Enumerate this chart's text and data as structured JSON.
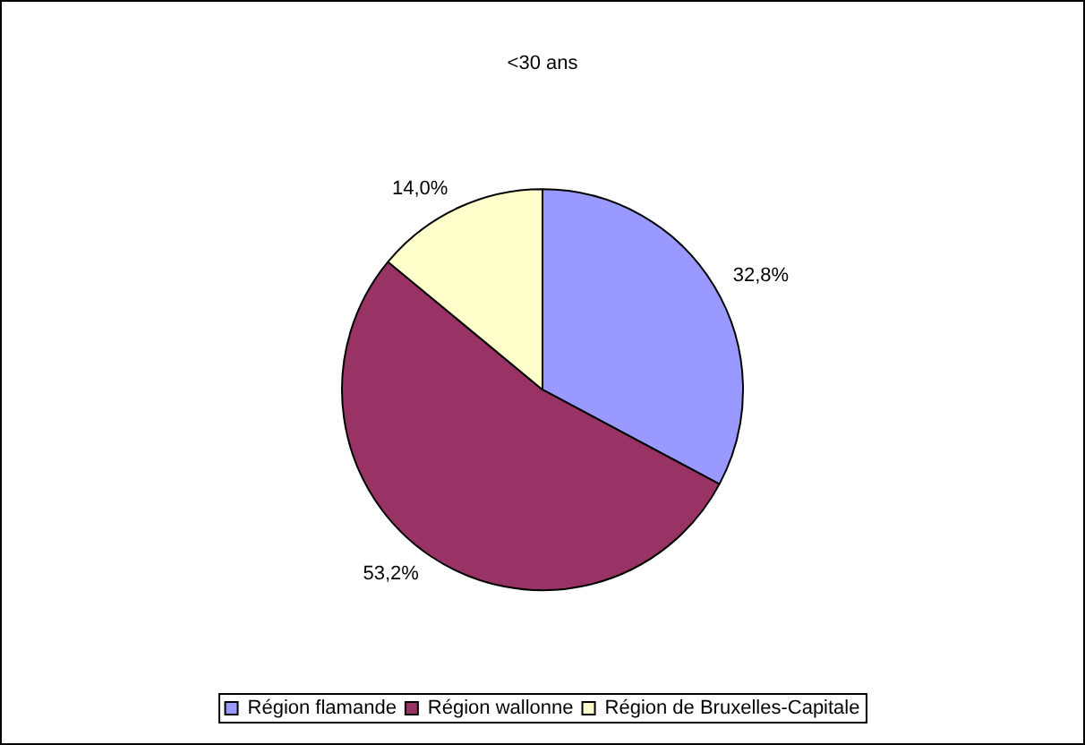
{
  "chart_data": {
    "type": "pie",
    "title": "<30 ans",
    "categories": [
      "Région flamande",
      "Région wallonne",
      "Région de Bruxelles-Capitale"
    ],
    "values": [
      32.8,
      53.2,
      14.0
    ],
    "colors": [
      "#9999ff",
      "#993366",
      "#ffffcc"
    ],
    "value_labels": [
      "32,8%",
      "53,2%",
      "14,0%"
    ],
    "legend": "bottom"
  }
}
